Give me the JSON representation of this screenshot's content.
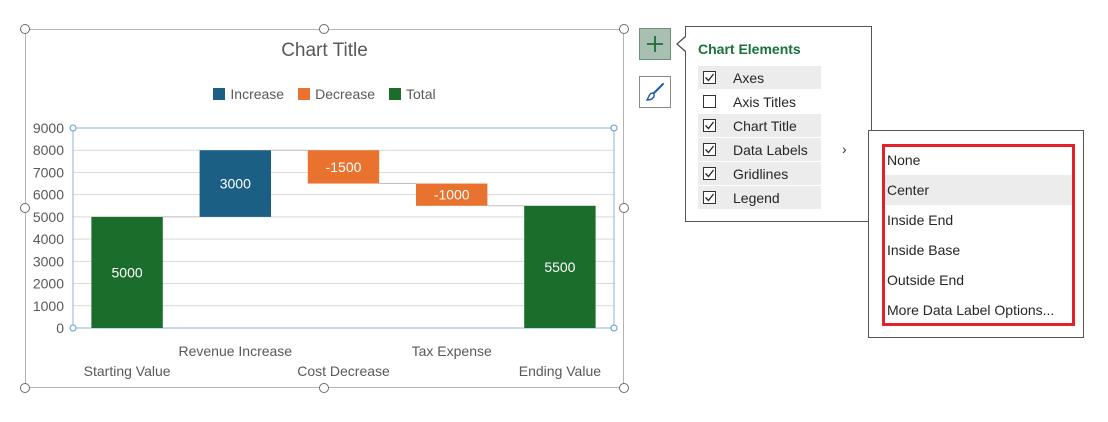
{
  "chart": {
    "title": "Chart Title",
    "legend": [
      {
        "label": "Increase",
        "color": "#1b5f84"
      },
      {
        "label": "Decrease",
        "color": "#e8722e"
      },
      {
        "label": "Total",
        "color": "#1b6d2b"
      }
    ]
  },
  "chart_data": {
    "type": "bar",
    "subtype": "waterfall",
    "title": "Chart Title",
    "categories": [
      "Starting Value",
      "Revenue Increase",
      "Cost Decrease",
      "Tax Expense",
      "Ending Value"
    ],
    "values": [
      5000,
      3000,
      -1500,
      -1000,
      5500
    ],
    "kinds": [
      "total",
      "increase",
      "decrease",
      "decrease",
      "total"
    ],
    "data_labels": [
      "5000",
      "3000",
      "-1500",
      "-1000",
      "5500"
    ],
    "ylim": [
      0,
      9000
    ],
    "yticks": [
      0,
      1000,
      2000,
      3000,
      4000,
      5000,
      6000,
      7000,
      8000,
      9000
    ],
    "grid": true,
    "legend_position": "top",
    "colors": {
      "increase": "#1b5f84",
      "decrease": "#e8722e",
      "total": "#1b6d2b"
    }
  },
  "buttons": {
    "add_element_icon": "plus-icon",
    "style_icon": "paintbrush-icon"
  },
  "elements_panel": {
    "title": "Chart Elements",
    "items": [
      {
        "label": "Axes",
        "checked": true
      },
      {
        "label": "Axis Titles",
        "checked": false
      },
      {
        "label": "Chart Title",
        "checked": true
      },
      {
        "label": "Data Labels",
        "checked": true
      },
      {
        "label": "Gridlines",
        "checked": true
      },
      {
        "label": "Legend",
        "checked": true
      }
    ]
  },
  "data_labels_submenu": {
    "items": [
      "None",
      "Center",
      "Inside End",
      "Inside Base",
      "Outside End",
      "More Data Label Options..."
    ],
    "highlighted": "Center"
  }
}
